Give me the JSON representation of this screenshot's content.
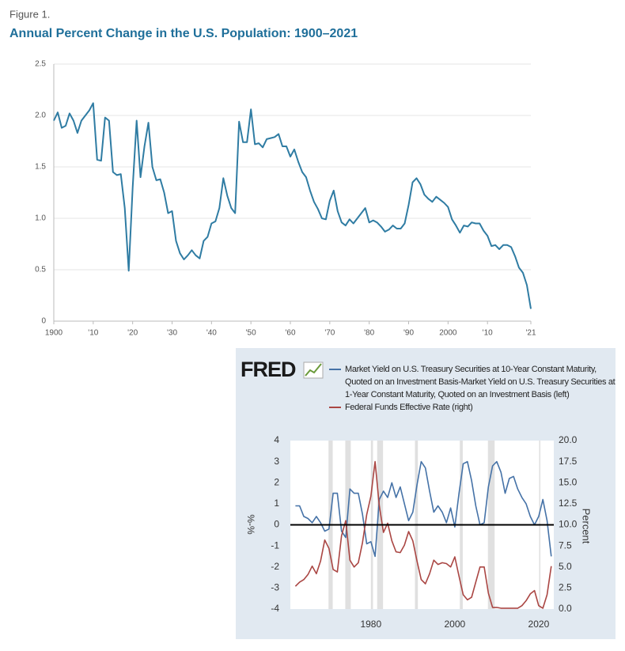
{
  "chart_data": [
    {
      "type": "line",
      "figure_label": "Figure 1.",
      "title": "Annual Percent Change in the U.S. Population: 1900–2021",
      "x": [
        1900,
        1901,
        1902,
        1903,
        1904,
        1905,
        1906,
        1907,
        1908,
        1909,
        1910,
        1911,
        1912,
        1913,
        1914,
        1915,
        1916,
        1917,
        1918,
        1919,
        1920,
        1921,
        1922,
        1923,
        1924,
        1925,
        1926,
        1927,
        1928,
        1929,
        1930,
        1931,
        1932,
        1933,
        1934,
        1935,
        1936,
        1937,
        1938,
        1939,
        1940,
        1941,
        1942,
        1943,
        1944,
        1945,
        1946,
        1947,
        1948,
        1949,
        1950,
        1951,
        1952,
        1953,
        1954,
        1955,
        1956,
        1957,
        1958,
        1959,
        1960,
        1961,
        1962,
        1963,
        1964,
        1965,
        1966,
        1967,
        1968,
        1969,
        1970,
        1971,
        1972,
        1973,
        1974,
        1975,
        1976,
        1977,
        1978,
        1979,
        1980,
        1981,
        1982,
        1983,
        1984,
        1985,
        1986,
        1987,
        1988,
        1989,
        1990,
        1991,
        1992,
        1993,
        1994,
        1995,
        1996,
        1997,
        1998,
        1999,
        2000,
        2001,
        2002,
        2003,
        2004,
        2005,
        2006,
        2007,
        2008,
        2009,
        2010,
        2011,
        2012,
        2013,
        2014,
        2015,
        2016,
        2017,
        2018,
        2019,
        2020,
        2021
      ],
      "series": [
        {
          "name": "Annual percent change",
          "color": "#2f7ca3",
          "values": [
            1.95,
            2.03,
            1.88,
            1.9,
            2.02,
            1.95,
            1.83,
            1.95,
            2.0,
            2.05,
            2.12,
            1.57,
            1.56,
            1.98,
            1.95,
            1.45,
            1.42,
            1.43,
            1.1,
            0.49,
            1.3,
            1.95,
            1.4,
            1.7,
            1.93,
            1.5,
            1.37,
            1.38,
            1.25,
            1.05,
            1.07,
            0.78,
            0.66,
            0.6,
            0.64,
            0.69,
            0.64,
            0.61,
            0.78,
            0.82,
            0.95,
            0.97,
            1.1,
            1.39,
            1.22,
            1.1,
            1.05,
            1.94,
            1.74,
            1.74,
            2.06,
            1.72,
            1.73,
            1.69,
            1.77,
            1.78,
            1.79,
            1.82,
            1.7,
            1.7,
            1.6,
            1.67,
            1.55,
            1.45,
            1.4,
            1.27,
            1.16,
            1.09,
            1.0,
            0.99,
            1.17,
            1.27,
            1.07,
            0.96,
            0.93,
            0.99,
            0.95,
            1.0,
            1.05,
            1.1,
            0.96,
            0.98,
            0.96,
            0.92,
            0.87,
            0.89,
            0.93,
            0.9,
            0.9,
            0.95,
            1.13,
            1.35,
            1.39,
            1.33,
            1.23,
            1.19,
            1.16,
            1.21,
            1.18,
            1.15,
            1.11,
            0.99,
            0.93,
            0.86,
            0.93,
            0.92,
            0.96,
            0.95,
            0.95,
            0.88,
            0.83,
            0.73,
            0.74,
            0.7,
            0.74,
            0.74,
            0.72,
            0.63,
            0.52,
            0.47,
            0.35,
            0.12
          ]
        }
      ],
      "xlim": [
        1900,
        2021
      ],
      "xticks": [
        1900,
        {
          "value": 1910,
          "label": "'10"
        },
        {
          "value": 1920,
          "label": "'20"
        },
        {
          "value": 1930,
          "label": "'30"
        },
        {
          "value": 1940,
          "label": "'40"
        },
        {
          "value": 1950,
          "label": "'50"
        },
        {
          "value": 1960,
          "label": "'60"
        },
        {
          "value": 1970,
          "label": "'70"
        },
        {
          "value": 1980,
          "label": "'80"
        },
        {
          "value": 1990,
          "label": "'90"
        },
        2000,
        {
          "value": 2010,
          "label": "'10"
        },
        {
          "value": 2021,
          "label": "'21"
        }
      ],
      "ylim": [
        0,
        2.5
      ],
      "yticks": [
        0,
        0.5,
        {
          "value": 1,
          "label": "1.0"
        },
        1.5,
        {
          "value": 2,
          "label": "2.0"
        },
        2.5
      ],
      "grid": true
    },
    {
      "type": "line",
      "logo": "FRED",
      "ylabel": "%-%",
      "y2label": "Percent",
      "x": [
        1962,
        1963,
        1964,
        1965,
        1966,
        1967,
        1968,
        1969,
        1970,
        1971,
        1972,
        1973,
        1974,
        1975,
        1976,
        1977,
        1978,
        1979,
        1980,
        1981,
        1982,
        1983,
        1984,
        1985,
        1986,
        1987,
        1988,
        1989,
        1990,
        1991,
        1992,
        1993,
        1994,
        1995,
        1996,
        1997,
        1998,
        1999,
        2000,
        2001,
        2002,
        2003,
        2004,
        2005,
        2006,
        2007,
        2008,
        2009,
        2010,
        2011,
        2012,
        2013,
        2014,
        2015,
        2016,
        2017,
        2018,
        2019,
        2020,
        2021,
        2022,
        2023
      ],
      "series": [
        {
          "name": "Market Yield on U.S. Treasury Securities at 10-Year Constant Maturity, Quoted on an Investment Basis-Market Yield on U.S. Treasury Securities at 1-Year Constant Maturity, Quoted on an Investment Basis (left)",
          "color": "#4572a7",
          "values": [
            0.9,
            0.9,
            0.4,
            0.3,
            0.1,
            0.4,
            0.1,
            -0.3,
            -0.2,
            1.5,
            1.5,
            -0.3,
            -0.6,
            1.7,
            1.5,
            1.5,
            0.5,
            -0.9,
            -0.8,
            -1.5,
            1.2,
            1.6,
            1.3,
            2.0,
            1.3,
            1.8,
            1.0,
            0.2,
            0.6,
            1.9,
            3.0,
            2.7,
            1.6,
            0.6,
            0.9,
            0.6,
            0.1,
            0.8,
            -0.1,
            1.5,
            2.9,
            3.0,
            2.1,
            0.9,
            0.0,
            0.1,
            1.8,
            2.8,
            3.0,
            2.5,
            1.5,
            2.2,
            2.3,
            1.7,
            1.3,
            1.0,
            0.4,
            0.0,
            0.4,
            1.2,
            0.2,
            -1.5
          ]
        },
        {
          "name": "Federal Funds Effective Rate (right)",
          "color": "#aa4643",
          "axis": "y2",
          "values": [
            2.7,
            3.2,
            3.5,
            4.1,
            5.1,
            4.2,
            5.7,
            8.2,
            7.2,
            4.7,
            4.4,
            8.7,
            10.5,
            5.8,
            5.0,
            5.5,
            7.9,
            11.2,
            13.4,
            17.5,
            12.3,
            9.1,
            10.2,
            8.1,
            6.8,
            6.7,
            7.6,
            9.2,
            8.1,
            5.7,
            3.5,
            3.0,
            4.2,
            5.8,
            5.3,
            5.5,
            5.4,
            5.0,
            6.2,
            3.9,
            1.7,
            1.1,
            1.4,
            3.2,
            5.0,
            5.0,
            1.9,
            0.2,
            0.2,
            0.1,
            0.1,
            0.1,
            0.1,
            0.1,
            0.4,
            1.0,
            1.8,
            2.2,
            0.4,
            0.1,
            1.7,
            5.1
          ]
        }
      ],
      "recessions": [
        [
          1969.9,
          1970.9
        ],
        [
          1973.9,
          1975.2
        ],
        [
          1980.0,
          1980.5
        ],
        [
          1981.5,
          1982.9
        ],
        [
          1990.5,
          1991.2
        ],
        [
          2001.2,
          2001.9
        ],
        [
          2007.9,
          2009.5
        ],
        [
          2020.1,
          2020.4
        ]
      ],
      "hline": 0,
      "xlim": [
        1960.8,
        2023.6
      ],
      "xticks": [
        1980,
        2000,
        2020
      ],
      "ylim": [
        -4,
        4
      ],
      "yticks": [
        -4,
        -3,
        -2,
        -1,
        0,
        1,
        2,
        3,
        4
      ],
      "y2lim": [
        0,
        20
      ],
      "y2ticks": [
        {
          "value": 0,
          "label": "0.0"
        },
        {
          "value": 2.5,
          "label": "2.5"
        },
        {
          "value": 5,
          "label": "5.0"
        },
        {
          "value": 7.5,
          "label": "7.5"
        },
        {
          "value": 10,
          "label": "10.0"
        },
        {
          "value": 12.5,
          "label": "12.5"
        },
        {
          "value": 15,
          "label": "15.0"
        },
        {
          "value": 17.5,
          "label": "17.5"
        },
        {
          "value": 20,
          "label": "20.0"
        }
      ],
      "grid": false
    }
  ]
}
